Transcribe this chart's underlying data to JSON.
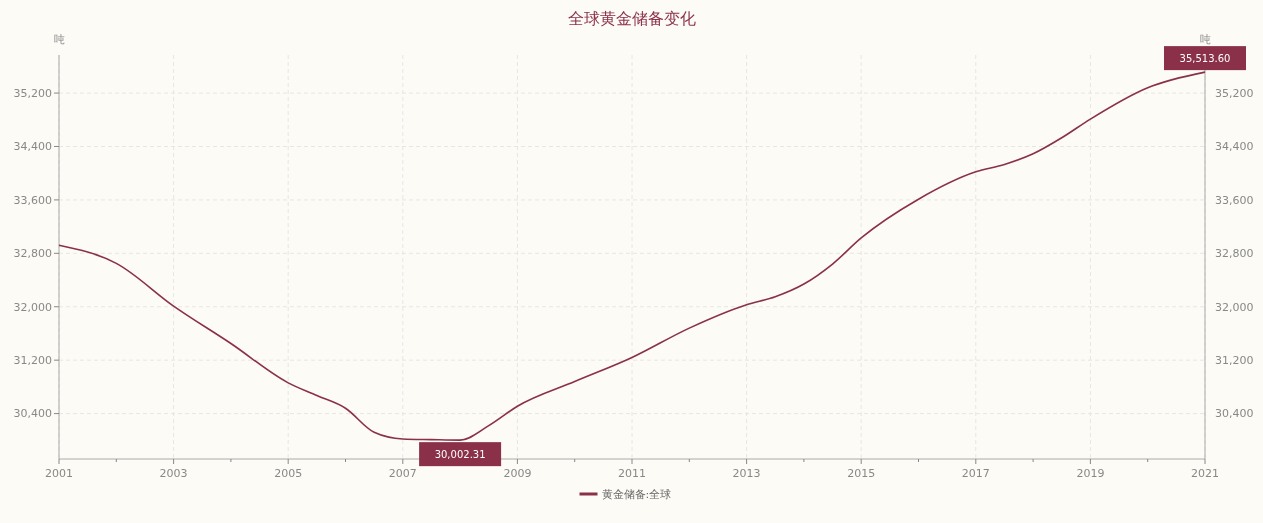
{
  "chart_data": {
    "type": "line",
    "title": "全球黄金储备变化",
    "ylabel": "吨",
    "y2label": "吨",
    "x": [
      2001,
      2002,
      2003,
      2004,
      2005,
      2005.5,
      2006,
      2006.5,
      2007,
      2007.5,
      2008,
      2008.5,
      2009,
      2010,
      2011,
      2012,
      2013,
      2013.5,
      2014,
      2014.5,
      2015,
      2016,
      2017,
      2017.5,
      2018,
      2018.5,
      2019,
      2020,
      2021
    ],
    "series": [
      {
        "name": "黄金储备:全球",
        "color": "#8b3049",
        "values": [
          32920,
          32650,
          32010,
          31450,
          30860,
          30670,
          30480,
          30120,
          30020,
          30010,
          30002.31,
          30220,
          30510,
          30880,
          31240,
          31680,
          32030,
          32150,
          32340,
          32640,
          33030,
          33610,
          34020,
          34130,
          34290,
          34530,
          34810,
          35280,
          35513.6
        ]
      }
    ],
    "xlim": [
      2001,
      2021
    ],
    "xticks": [
      2001,
      {
        "value": 2002,
        "label": null
      },
      2003,
      {
        "value": 2004,
        "label": null
      },
      2005,
      {
        "value": 2006,
        "label": null
      },
      2007,
      {
        "value": 2008,
        "label": null
      },
      2009,
      {
        "value": 2010,
        "label": null
      },
      2011,
      {
        "value": 2012,
        "label": null
      },
      2013,
      {
        "value": 2014,
        "label": null
      },
      2015,
      {
        "value": 2016,
        "label": null
      },
      2017,
      {
        "value": 2018,
        "label": null
      },
      2019,
      {
        "value": 2020,
        "label": null
      },
      2021
    ],
    "ylim": [
      29720,
      35770
    ],
    "yticks": [
      {
        "value": 30400,
        "label": "30,400"
      },
      {
        "value": 31200,
        "label": "31,200"
      },
      {
        "value": 32000,
        "label": "32,000"
      },
      {
        "value": 32800,
        "label": "32,800"
      },
      {
        "value": 33600,
        "label": "33,600"
      },
      {
        "value": 34400,
        "label": "34,400"
      },
      {
        "value": 35200,
        "label": "35,200"
      }
    ],
    "y2lim": [
      29720,
      35770
    ],
    "y2ticks": [
      {
        "value": 30400,
        "label": "30,400"
      },
      {
        "value": 31200,
        "label": "31,200"
      },
      {
        "value": 32000,
        "label": "32,000"
      },
      {
        "value": 32800,
        "label": "32,800"
      },
      {
        "value": 33600,
        "label": "33,600"
      },
      {
        "value": 34400,
        "label": "34,400"
      },
      {
        "value": 35200,
        "label": "35,200"
      }
    ],
    "annotations": [
      {
        "text": "30,002.31",
        "x": 2008,
        "y": 30002.31
      },
      {
        "text": "35,513.60",
        "x": 2021,
        "y": 35513.6
      }
    ],
    "grid": true,
    "legend": "bottom",
    "marker": "none",
    "line_style": "solid"
  }
}
